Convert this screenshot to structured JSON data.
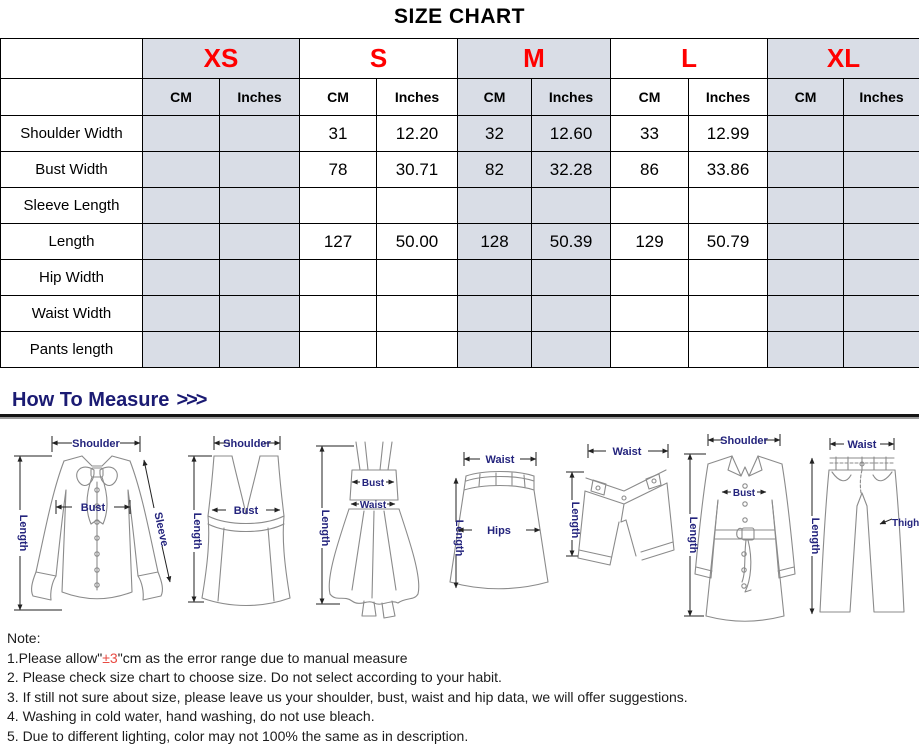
{
  "title": "SIZE CHART",
  "table": {
    "sizes": [
      {
        "label": "XS",
        "shaded": true
      },
      {
        "label": "S",
        "shaded": false
      },
      {
        "label": "M",
        "shaded": true
      },
      {
        "label": "L",
        "shaded": false
      },
      {
        "label": "XL",
        "shaded": true
      }
    ],
    "unit_headers": [
      "CM",
      "Inches"
    ],
    "rows": [
      {
        "label": "Shoulder Width",
        "values": [
          "",
          "",
          "31",
          "12.20",
          "32",
          "12.60",
          "33",
          "12.99",
          "",
          ""
        ]
      },
      {
        "label": "Bust Width",
        "values": [
          "",
          "",
          "78",
          "30.71",
          "82",
          "32.28",
          "86",
          "33.86",
          "",
          ""
        ]
      },
      {
        "label": "Sleeve Length",
        "values": [
          "",
          "",
          "",
          "",
          "",
          "",
          "",
          "",
          "",
          ""
        ]
      },
      {
        "label": "Length",
        "values": [
          "",
          "",
          "127",
          "50.00",
          "128",
          "50.39",
          "129",
          "50.79",
          "",
          ""
        ]
      },
      {
        "label": "Hip Width",
        "values": [
          "",
          "",
          "",
          "",
          "",
          "",
          "",
          "",
          "",
          ""
        ]
      },
      {
        "label": "Waist Width",
        "values": [
          "",
          "",
          "",
          "",
          "",
          "",
          "",
          "",
          "",
          ""
        ]
      },
      {
        "label": "Pants length",
        "values": [
          "",
          "",
          "",
          "",
          "",
          "",
          "",
          "",
          "",
          ""
        ]
      }
    ]
  },
  "how_to_measure": {
    "heading": "How To Measure",
    "arrows": ">>>"
  },
  "figures": [
    {
      "garment": "blouse",
      "labels": {
        "shoulder": "Shoulder",
        "length": "Length",
        "bust": "Bust",
        "sleeve": "Sleeve"
      }
    },
    {
      "garment": "vest",
      "labels": {
        "shoulder": "Shoulder",
        "length": "Length",
        "bust": "Bust"
      }
    },
    {
      "garment": "dress",
      "labels": {
        "length": "Length",
        "bust": "Bust",
        "waist": "Waist"
      }
    },
    {
      "garment": "skirt",
      "labels": {
        "waist": "Waist",
        "length": "Length",
        "hips": "Hips"
      }
    },
    {
      "garment": "shorts",
      "labels": {
        "waist": "Waist",
        "length": "Length"
      }
    },
    {
      "garment": "coat",
      "labels": {
        "shoulder": "Shoulder",
        "length": "Length",
        "bust": "Bust"
      }
    },
    {
      "garment": "pants",
      "labels": {
        "waist": "Waist",
        "length": "Length",
        "thigh": "Thigh"
      }
    }
  ],
  "notes": {
    "heading": "Note:",
    "item1_prefix": "1.Please allow\"",
    "item1_highlight": "±3",
    "item1_suffix": "\"cm as the error range due to manual measure",
    "item2": "2. Please check size chart to choose size. Do not select according to your habit.",
    "item3": "3. If still not sure about size, please leave us your shoulder, bust, waist and hip data, we will offer suggestions.",
    "item4": "4. Washing in cold water, hand washing, do not use bleach.",
    "item5": "5. Due to different lighting, color may not 100% the same as in description."
  },
  "colors": {
    "size_label_red": "#ff0000",
    "note_highlight_red": "#e84a42",
    "shaded_column": "#d9dde6",
    "heading_navy": "#1b1b73",
    "figure_label_navy": "#24247d",
    "table_border": "#000000"
  }
}
